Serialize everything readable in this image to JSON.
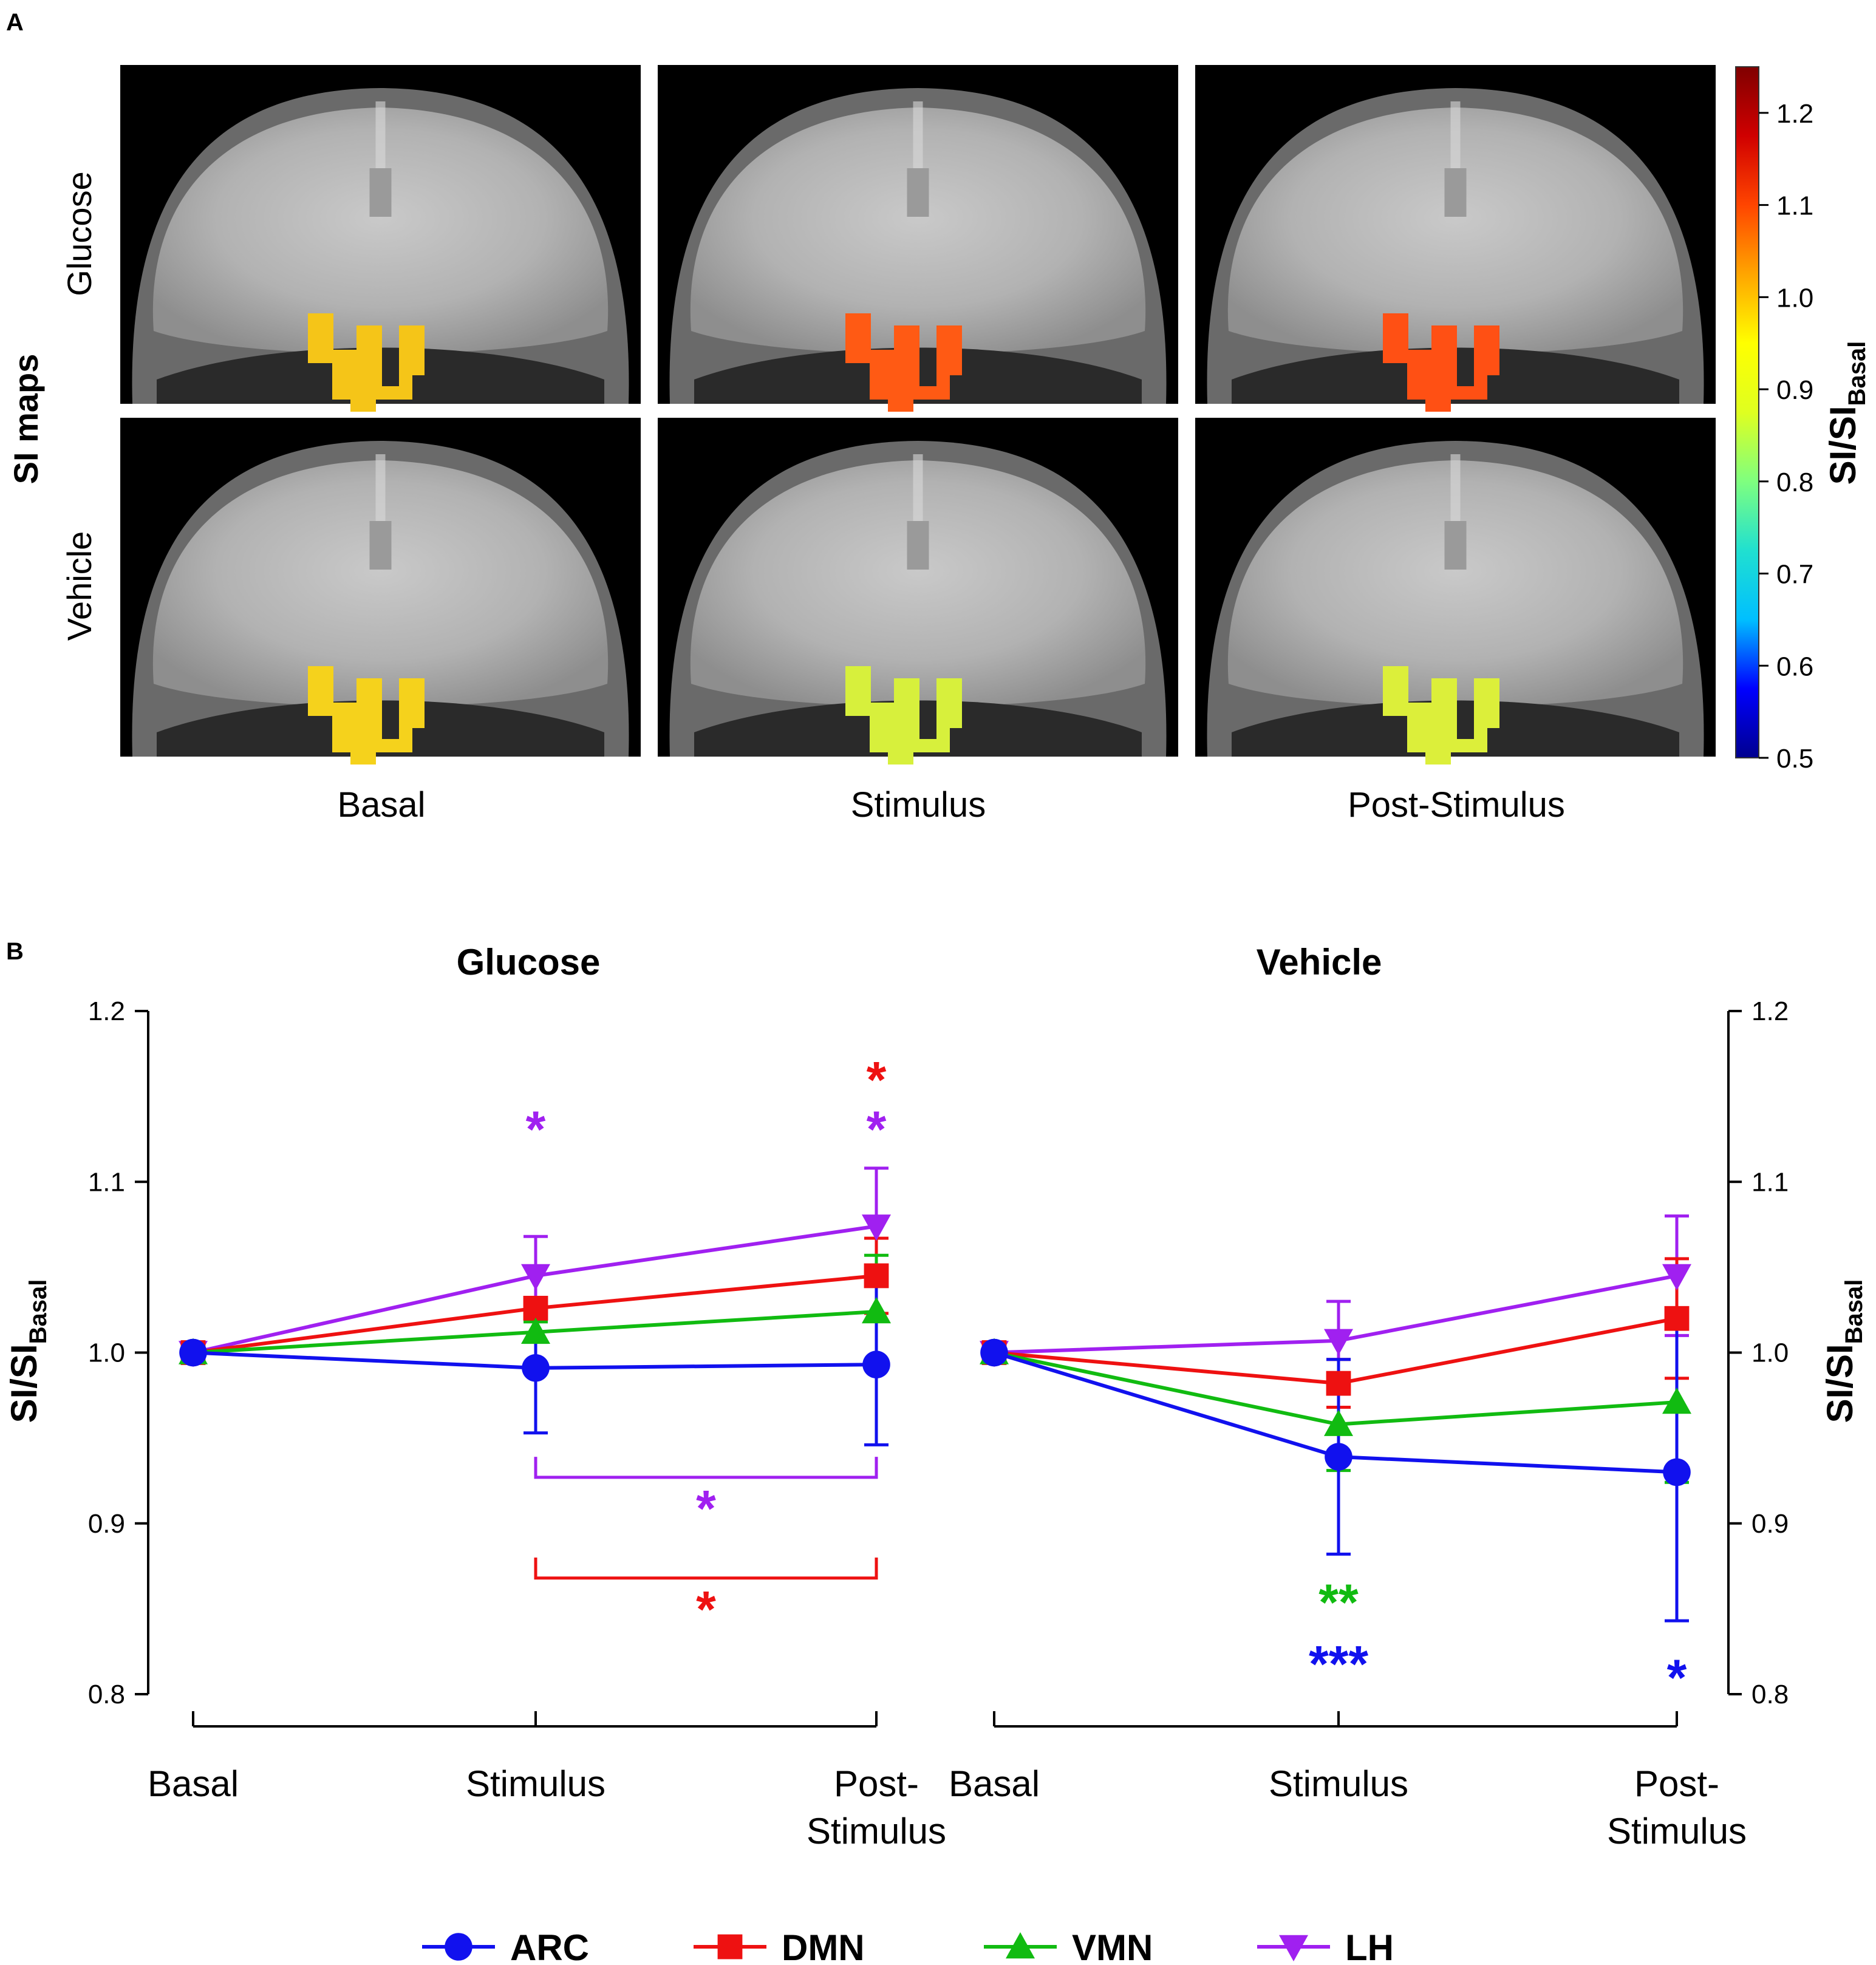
{
  "panelA": {
    "label": "A",
    "ylabel": "SI maps",
    "row_labels": [
      "Glucose",
      "Vehicle"
    ],
    "col_labels": [
      "Basal",
      "Stimulus",
      "Post-Stimulus"
    ],
    "roi_colors": [
      [
        "#f5c518",
        "#ff5a14",
        "#ff5014"
      ],
      [
        "#f5d21c",
        "#d7f03c",
        "#dcef3a"
      ]
    ],
    "colorbar": {
      "title_main": "SI/SI",
      "title_sub": "Basal",
      "ticks": [
        "0.5",
        "0.6",
        "0.7",
        "0.8",
        "0.9",
        "1.0",
        "1.1",
        "1.2"
      ],
      "range": [
        0.5,
        1.25
      ],
      "gradient": [
        "#00008f",
        "#0000ff",
        "#00bfff",
        "#20e0d0",
        "#7fff7f",
        "#dfff20",
        "#ffff00",
        "#ffa500",
        "#ff4500",
        "#d00000",
        "#800000"
      ]
    }
  },
  "panelB": {
    "label": "B",
    "ylabel_main": "SI/SI",
    "ylabel_sub": "Basal",
    "yticks": [
      "0.8",
      "0.9",
      "1.0",
      "1.1",
      "1.2"
    ]
  },
  "chart_data": [
    {
      "type": "line",
      "title": "Glucose",
      "categories": [
        "Basal",
        "Stimulus",
        "Post-\nStimulus"
      ],
      "ylim": [
        0.8,
        1.2
      ],
      "series": [
        {
          "name": "LH",
          "color": "#a020f0",
          "marker": "tri-down",
          "values": [
            1.0,
            1.045,
            1.074
          ],
          "err": [
            0,
            0.023,
            0.034
          ]
        },
        {
          "name": "DMN",
          "color": "#ee1111",
          "marker": "square",
          "values": [
            1.0,
            1.026,
            1.045
          ],
          "err": [
            0,
            0.004,
            0.022
          ]
        },
        {
          "name": "VMN",
          "color": "#11bb11",
          "marker": "tri-up",
          "values": [
            1.0,
            1.012,
            1.024
          ],
          "err": [
            0,
            0.006,
            0.033
          ]
        },
        {
          "name": "ARC",
          "color": "#1111ee",
          "marker": "circle",
          "values": [
            1.0,
            0.991,
            0.993
          ],
          "err": [
            0,
            0.038,
            0.047
          ]
        }
      ],
      "annotations": [
        {
          "text": "*",
          "x": 1,
          "y": 1.134,
          "color": "#a020f0"
        },
        {
          "text": "*",
          "x": 2,
          "y": 1.163,
          "color": "#ee1111"
        },
        {
          "text": "*",
          "x": 2,
          "y": 1.134,
          "color": "#a020f0"
        },
        {
          "text": "*",
          "x": 1.5,
          "y": 0.912,
          "color": "#a020f0"
        },
        {
          "text": "*",
          "x": 1.5,
          "y": 0.853,
          "color": "#ee1111"
        }
      ],
      "brackets": [
        {
          "from": 1,
          "to": 2,
          "y": 0.927,
          "tick_up": 0.012,
          "color": "#a020f0"
        },
        {
          "from": 1,
          "to": 2,
          "y": 0.868,
          "tick_up": 0.012,
          "color": "#ee1111"
        }
      ]
    },
    {
      "type": "line",
      "title": "Vehicle",
      "categories": [
        "Basal",
        "Stimulus",
        "Post-\nStimulus"
      ],
      "ylim": [
        0.8,
        1.2
      ],
      "series": [
        {
          "name": "LH",
          "color": "#a020f0",
          "marker": "tri-down",
          "values": [
            1.0,
            1.007,
            1.045
          ],
          "err": [
            0,
            0.023,
            0.035
          ]
        },
        {
          "name": "DMN",
          "color": "#ee1111",
          "marker": "square",
          "values": [
            1.0,
            0.982,
            1.02
          ],
          "err": [
            0,
            0.014,
            0.035
          ]
        },
        {
          "name": "VMN",
          "color": "#11bb11",
          "marker": "tri-up",
          "values": [
            1.0,
            0.958,
            0.971
          ],
          "err": [
            0,
            0.027,
            0.047
          ]
        },
        {
          "name": "ARC",
          "color": "#1111ee",
          "marker": "circle",
          "values": [
            1.0,
            0.939,
            0.93
          ],
          "err": [
            0,
            0.057,
            0.087
          ]
        }
      ],
      "annotations": [
        {
          "text": "**",
          "x": 1,
          "y": 0.857,
          "color": "#11bb11"
        },
        {
          "text": "***",
          "x": 1,
          "y": 0.821,
          "color": "#1111ee"
        },
        {
          "text": "*",
          "x": 2,
          "y": 0.813,
          "color": "#1111ee"
        }
      ],
      "brackets": []
    }
  ],
  "legend": [
    {
      "name": "ARC",
      "color": "#1111ee",
      "marker": "circle"
    },
    {
      "name": "DMN",
      "color": "#ee1111",
      "marker": "square"
    },
    {
      "name": "VMN",
      "color": "#11bb11",
      "marker": "tri-up"
    },
    {
      "name": "LH",
      "color": "#a020f0",
      "marker": "tri-down"
    }
  ]
}
